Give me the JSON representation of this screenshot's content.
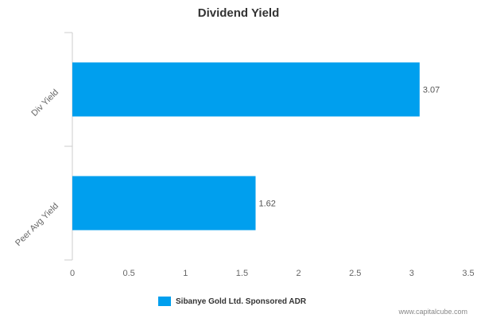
{
  "chart_data": {
    "type": "bar",
    "orientation": "horizontal",
    "title": "Dividend Yield",
    "categories": [
      "Div Yield",
      "Peer Avg Yield"
    ],
    "series": [
      {
        "name": "Sibanye Gold Ltd. Sponsored ADR",
        "values": [
          3.07,
          1.62
        ]
      }
    ],
    "data_labels": [
      "3.07",
      "1.62"
    ],
    "xlim": [
      0,
      3.5
    ],
    "x_ticks": [
      0,
      0.5,
      1,
      1.5,
      2,
      2.5,
      3,
      3.5
    ],
    "x_tick_labels": [
      "0",
      "0.5",
      "1",
      "1.5",
      "2",
      "2.5",
      "3",
      "3.5"
    ],
    "grid": false,
    "legend_position": "bottom-center",
    "bar_color": "#009FEE"
  },
  "credit": "www.capitalcube.com"
}
